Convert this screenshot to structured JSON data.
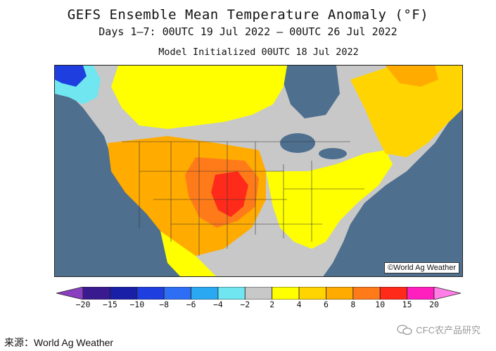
{
  "title": "GEFS Ensemble Mean Temperature Anomaly (°F)",
  "subtitle": "Days 1–7: 00UTC 19 Jul 2022 — 00UTC 26 Jul 2022",
  "initialized": "Model Initialized 00UTC 18 Jul 2022",
  "credit": "©World Ag Weather",
  "source": "来源：World Ag Weather",
  "watermark": "CFC农产品研究",
  "watermark_icon": "wechat-icon",
  "legend": {
    "ticks": [
      "−20",
      "−15",
      "−10",
      "−8",
      "−6",
      "−4",
      "−2",
      "2",
      "4",
      "6",
      "8",
      "10",
      "15",
      "20"
    ],
    "colors": [
      "#8a3fc0",
      "#3a1a8f",
      "#1a1fa8",
      "#1f3ee0",
      "#2e6ef5",
      "#2aa8f2",
      "#6fe6f0",
      "#c8c8c8",
      "#ffff00",
      "#ffd400",
      "#ffab00",
      "#ff7b1a",
      "#ff2a1a",
      "#ff1fbf",
      "#ff7fe6"
    ]
  },
  "colors": {
    "ocean": "#4e6f8e",
    "neutral": "#c8c8c8",
    "state_lines": "#333333"
  }
}
